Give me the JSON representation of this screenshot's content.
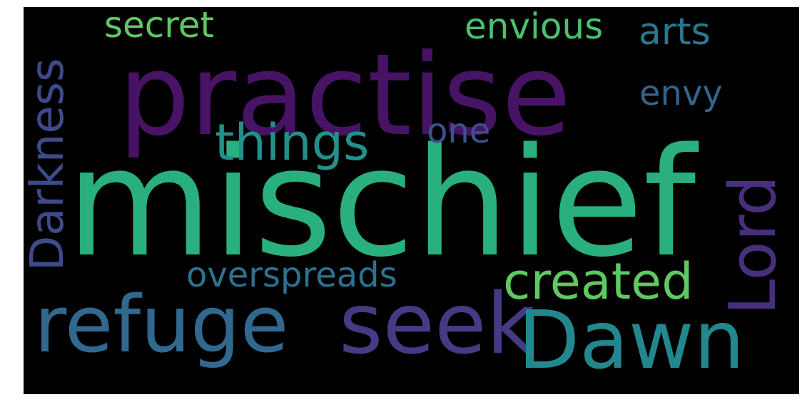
{
  "words": {
    "mischief": {
      "text": "mischief",
      "color": "#2ab07f"
    },
    "practise": {
      "text": "practise",
      "color": "#471365"
    },
    "refuge": {
      "text": "refuge",
      "color": "#31688e"
    },
    "seek": {
      "text": "seek",
      "color": "#443b84"
    },
    "dawn": {
      "text": "Dawn",
      "color": "#23888e"
    },
    "lord": {
      "text": "Lord",
      "color": "#472f7d"
    },
    "darkness": {
      "text": "Darkness",
      "color": "#3e4a89"
    },
    "things": {
      "text": "things",
      "color": "#21918c"
    },
    "created": {
      "text": "created",
      "color": "#5ec962"
    },
    "overspreads": {
      "text": "overspreads",
      "color": "#2c728e"
    },
    "secret": {
      "text": "secret",
      "color": "#5ec962"
    },
    "envious": {
      "text": "envious",
      "color": "#4ac16d"
    },
    "arts": {
      "text": "arts",
      "color": "#2a788e"
    },
    "envy": {
      "text": "envy",
      "color": "#33638d"
    },
    "one": {
      "text": "one",
      "color": "#3b528b"
    }
  }
}
